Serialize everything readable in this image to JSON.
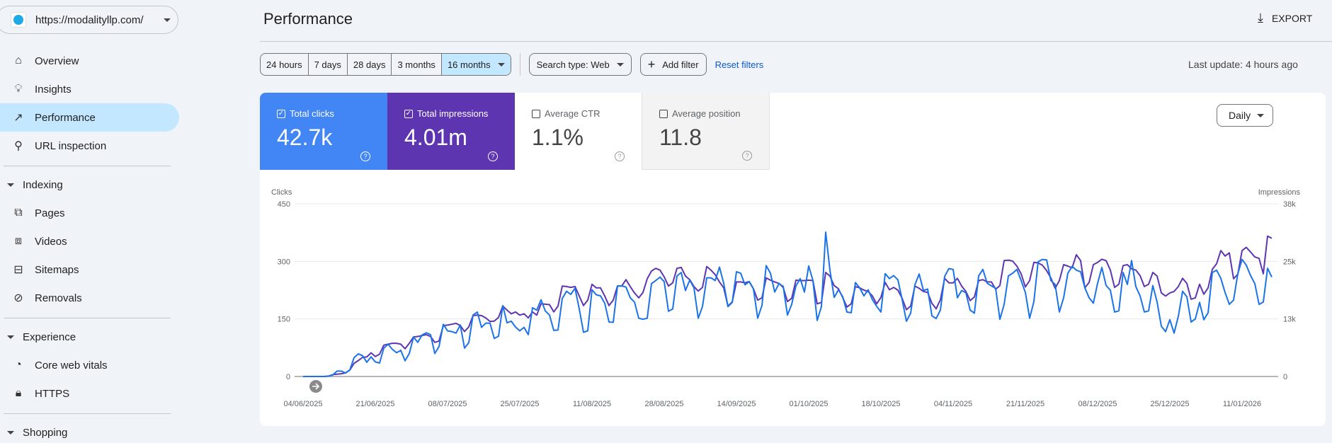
{
  "property": {
    "url": "https://modalityllp.com/"
  },
  "sidebar": {
    "items": [
      {
        "label": "Overview",
        "icon": "home-icon"
      },
      {
        "label": "Insights",
        "icon": "lightbulb-icon"
      },
      {
        "label": "Performance",
        "icon": "trending-up-icon",
        "active": true
      },
      {
        "label": "URL inspection",
        "icon": "search-icon"
      }
    ],
    "indexing": {
      "label": "Indexing",
      "items": [
        {
          "label": "Pages",
          "icon": "pages-icon"
        },
        {
          "label": "Videos",
          "icon": "video-icon"
        },
        {
          "label": "Sitemaps",
          "icon": "sitemap-icon"
        },
        {
          "label": "Removals",
          "icon": "eye-off-icon"
        }
      ]
    },
    "experience": {
      "label": "Experience",
      "items": [
        {
          "label": "Core web vitals",
          "icon": "speedometer-icon"
        },
        {
          "label": "HTTPS",
          "icon": "lock-icon"
        }
      ]
    },
    "shopping": {
      "label": "Shopping"
    }
  },
  "header": {
    "title": "Performance",
    "export_label": "EXPORT"
  },
  "filters": {
    "ranges": [
      "24 hours",
      "7 days",
      "28 days",
      "3 months",
      "16 months"
    ],
    "selected_range": "16 months",
    "search_type": "Search type: Web",
    "add_filter": "Add filter",
    "reset": "Reset filters",
    "last_update": "Last update: 4 hours ago"
  },
  "metrics": [
    {
      "label": "Total clicks",
      "value": "42.7k",
      "checked": true,
      "color": "#4285f4"
    },
    {
      "label": "Total impressions",
      "value": "4.01m",
      "checked": true,
      "color": "#5e35b1"
    },
    {
      "label": "Average CTR",
      "value": "1.1%",
      "checked": false
    },
    {
      "label": "Average position",
      "value": "11.8",
      "checked": false
    }
  ],
  "granularity": "Daily",
  "chart_data": {
    "type": "line",
    "x_start": "04/06/2025",
    "x_step": "1 day",
    "x_ticks": [
      "04/06/2025",
      "21/06/2025",
      "08/07/2025",
      "25/07/2025",
      "11/08/2025",
      "28/08/2025",
      "14/09/2025",
      "01/10/2025",
      "18/10/2025",
      "04/11/2025",
      "21/11/2025",
      "08/12/2025",
      "25/12/2025",
      "11/01/2026"
    ],
    "left_axis": {
      "label": "Clicks",
      "ticks": [
        "0",
        "150",
        "300",
        "450"
      ],
      "range": [
        0,
        450
      ]
    },
    "right_axis": {
      "label": "Impressions",
      "ticks": [
        "0",
        "13k",
        "25k",
        "38k"
      ],
      "range": [
        0,
        38000
      ]
    },
    "grid": true,
    "series": [
      {
        "name": "Clicks",
        "axis": "left",
        "color": "#1a73e8",
        "values": [
          0,
          0,
          0,
          0,
          0,
          0,
          1,
          4,
          14,
          14,
          9,
          17,
          49,
          59,
          54,
          37,
          51,
          38,
          35,
          74,
          84,
          71,
          62,
          68,
          41,
          60,
          103,
          89,
          108,
          114,
          109,
          60,
          78,
          136,
          119,
          117,
          113,
          134,
          74,
          88,
          160,
          168,
          128,
          139,
          139,
          99,
          105,
          185,
          140,
          144,
          129,
          119,
          128,
          109,
          179,
          173,
          200,
          171,
          160,
          120,
          121,
          203,
          222,
          214,
          230,
          176,
          115,
          119,
          226,
          213,
          210,
          191,
          142,
          141,
          236,
          236,
          233,
          205,
          194,
          152,
          149,
          152,
          242,
          250,
          259,
          247,
          170,
          176,
          262,
          271,
          224,
          251,
          231,
          152,
          182,
          257,
          257,
          250,
          285,
          243,
          182,
          193,
          273,
          269,
          239,
          247,
          228,
          152,
          185,
          289,
          269,
          220,
          242,
          235,
          160,
          188,
          236,
          255,
          220,
          288,
          250,
          146,
          182,
          376,
          277,
          206,
          226,
          208,
          168,
          166,
          245,
          231,
          210,
          226,
          200,
          183,
          168,
          268,
          255,
          263,
          252,
          200,
          144,
          165,
          239,
          267,
          224,
          228,
          158,
          151,
          173,
          261,
          281,
          279,
          205,
          224,
          218,
          173,
          165,
          262,
          279,
          243,
          236,
          230,
          149,
          188,
          262,
          269,
          279,
          250,
          219,
          152,
          195,
          299,
          305,
          304,
          250,
          240,
          168,
          205,
          269,
          287,
          277,
          273,
          231,
          205,
          191,
          243,
          284,
          237,
          225,
          168,
          171,
          271,
          240,
          302,
          234,
          210,
          168,
          171,
          237,
          194,
          131,
          117,
          148,
          113,
          157,
          222,
          208,
          142,
          150,
          193,
          148,
          166,
          271,
          277,
          256,
          219,
          188,
          199,
          268,
          305,
          290,
          263,
          242,
          188,
          194,
          282,
          259
        ]
      },
      {
        "name": "Impressions",
        "axis": "right",
        "color": "#5e35b1",
        "values": [
          0,
          0,
          0,
          0,
          0,
          0,
          100,
          400,
          500,
          600,
          800,
          1400,
          2900,
          3500,
          4200,
          4300,
          5200,
          4400,
          4900,
          6900,
          7100,
          7300,
          7300,
          7100,
          6100,
          7300,
          8700,
          8800,
          9000,
          9200,
          8800,
          7500,
          7800,
          11200,
          11300,
          11500,
          11700,
          11200,
          9900,
          10900,
          13400,
          13500,
          13400,
          12900,
          12100,
          12200,
          13000,
          15500,
          14600,
          13800,
          14200,
          13500,
          13800,
          12900,
          14200,
          13500,
          16000,
          15900,
          15800,
          14200,
          15500,
          19900,
          19800,
          19600,
          19800,
          17700,
          15600,
          16800,
          20300,
          19500,
          19500,
          17700,
          15600,
          16800,
          19900,
          19900,
          21300,
          19800,
          18400,
          17300,
          18500,
          21500,
          23200,
          23800,
          23400,
          21900,
          19900,
          20600,
          23800,
          24000,
          22100,
          21300,
          19800,
          18800,
          19600,
          24200,
          23400,
          22400,
          20800,
          19500,
          15500,
          16400,
          20800,
          20800,
          20600,
          20900,
          19300,
          16800,
          17300,
          21700,
          21200,
          20800,
          20500,
          19600,
          16500,
          17200,
          21200,
          21100,
          21100,
          21200,
          21100,
          16000,
          16300,
          22900,
          22100,
          20000,
          19300,
          17400,
          15300,
          16000,
          19800,
          19500,
          19000,
          18700,
          17700,
          16000,
          17400,
          20700,
          19100,
          19600,
          19000,
          17200,
          14700,
          15500,
          19900,
          19400,
          18700,
          18500,
          16100,
          14900,
          16900,
          21600,
          20600,
          20600,
          21600,
          19900,
          18700,
          16700,
          17500,
          21100,
          21300,
          20800,
          20800,
          19200,
          20000,
          25500,
          25600,
          25400,
          24300,
          22600,
          19700,
          21100,
          25100,
          25000,
          24500,
          23300,
          21700,
          19400,
          21100,
          24600,
          24300,
          23900,
          26800,
          25500,
          19500,
          20700,
          24600,
          25100,
          25800,
          25500,
          23400,
          19600,
          20300,
          24400,
          24600,
          23700,
          23400,
          22200,
          19800,
          20300,
          22900,
          22100,
          18400,
          17700,
          18400,
          18700,
          19800,
          21600,
          20500,
          17000,
          17300,
          20300,
          18100,
          19500,
          23600,
          24800,
          27700,
          26500,
          27200,
          21500,
          22500,
          27700,
          28400,
          27400,
          26300,
          26000,
          22600,
          30900,
          30400
        ]
      }
    ]
  }
}
